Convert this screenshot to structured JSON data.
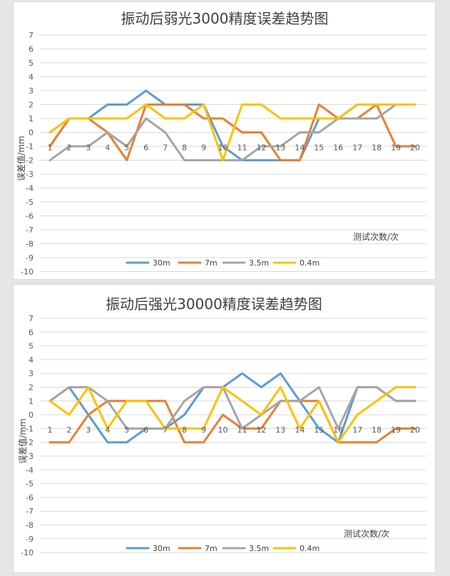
{
  "chart_data": [
    {
      "type": "line",
      "title": "振动后弱光3000精度误差趋势图",
      "xlabel": "测试次数/次",
      "ylabel": "误差值/mm",
      "ylim": [
        -10,
        7
      ],
      "categories": [
        "1",
        "2",
        "3",
        "4",
        "5",
        "6",
        "7",
        "8",
        "9",
        "10",
        "11",
        "12",
        "13",
        "14",
        "15",
        "16",
        "17",
        "18",
        "19",
        "20"
      ],
      "yticks": [
        "7",
        "6",
        "5",
        "4",
        "3",
        "2",
        "1",
        "0",
        "-1",
        "-2",
        "-3",
        "-4",
        "-5",
        "-6",
        "-7",
        "-8",
        "-9",
        "-10"
      ],
      "legend_position": "bottom",
      "grid": true,
      "series": [
        {
          "name": "30m",
          "color": "#5b9bd5",
          "values": [
            -1,
            1,
            1,
            2,
            2,
            3,
            2,
            2,
            2,
            -1,
            -2,
            -2,
            -2,
            -2,
            1,
            1,
            2,
            2,
            2,
            2
          ]
        },
        {
          "name": "7m",
          "color": "#ed7d31",
          "values": [
            -1,
            1,
            1,
            0,
            -2,
            2,
            2,
            2,
            1,
            1,
            0,
            0,
            -2,
            -2,
            2,
            1,
            1,
            2,
            -1,
            -1
          ]
        },
        {
          "name": "3.5m",
          "color": "#a5a5a5",
          "values": [
            -2,
            -1,
            -1,
            0,
            -1,
            1,
            0,
            -2,
            -2,
            -2,
            -2,
            -1,
            -1,
            0,
            0,
            1,
            1,
            1,
            2,
            2
          ]
        },
        {
          "name": "0.4m",
          "color": "#ffc000",
          "values": [
            0,
            1,
            1,
            1,
            1,
            2,
            1,
            1,
            2,
            -2,
            2,
            2,
            1,
            1,
            1,
            1,
            2,
            2,
            2,
            2
          ]
        }
      ]
    },
    {
      "type": "line",
      "title": "振动后强光30000精度误差趋势图",
      "xlabel": "测试次数/次",
      "ylabel": "误差值/mm",
      "ylim": [
        -10,
        7
      ],
      "categories": [
        "1",
        "2",
        "3",
        "4",
        "5",
        "6",
        "7",
        "8",
        "9",
        "10",
        "11",
        "12",
        "13",
        "14",
        "15",
        "16",
        "17",
        "18",
        "19",
        "20"
      ],
      "yticks": [
        "7",
        "6",
        "5",
        "4",
        "3",
        "2",
        "1",
        "0",
        "-1",
        "-2",
        "-3",
        "-4",
        "-5",
        "-6",
        "-7",
        "-8",
        "-9",
        "-10"
      ],
      "legend_position": "bottom",
      "grid": true,
      "series": [
        {
          "name": "30m",
          "color": "#5b9bd5",
          "values": [
            1,
            2,
            0,
            -2,
            -2,
            -1,
            -1,
            0,
            2,
            2,
            3,
            2,
            3,
            1,
            -1,
            -2,
            2,
            2,
            1,
            1
          ]
        },
        {
          "name": "7m",
          "color": "#ed7d31",
          "values": [
            -2,
            -2,
            0,
            1,
            1,
            1,
            1,
            -2,
            -2,
            0,
            -1,
            -1,
            1,
            1,
            1,
            -2,
            -2,
            -2,
            -1,
            -1
          ]
        },
        {
          "name": "3.5m",
          "color": "#a5a5a5",
          "values": [
            1,
            2,
            2,
            1,
            -1,
            -1,
            -1,
            1,
            2,
            2,
            -1,
            0,
            1,
            1,
            2,
            -1,
            2,
            2,
            1,
            1
          ]
        },
        {
          "name": "0.4m",
          "color": "#ffc000",
          "values": [
            1,
            0,
            2,
            -1,
            1,
            1,
            -1,
            -1,
            -1,
            2,
            1,
            0,
            2,
            -1,
            1,
            -2,
            0,
            1,
            2,
            2
          ]
        }
      ]
    }
  ]
}
